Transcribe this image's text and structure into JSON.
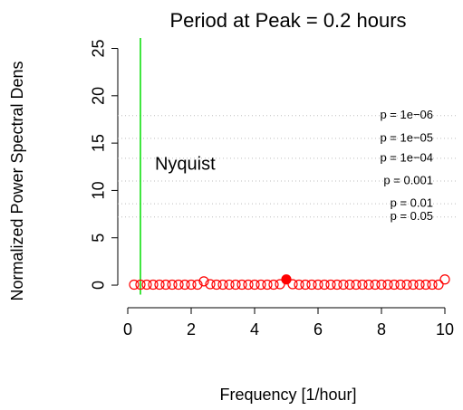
{
  "chart_data": {
    "type": "scatter",
    "title": "Period at Peak = 0.2 hours",
    "x_label": "Frequency [1/hour]",
    "y_label": "Normalized Power Spectral Dens",
    "xlim": [
      -0.314,
      10.4
    ],
    "ylim": [
      -1,
      26.1
    ],
    "xticks": [
      0,
      2,
      4,
      6,
      8,
      10
    ],
    "yticks": [
      0,
      5,
      10,
      15,
      20,
      25
    ],
    "series": [
      {
        "color": "#ff0000",
        "filled": false,
        "x": [
          0.2,
          0.4,
          0.6,
          0.8,
          1.0,
          1.2,
          1.4,
          1.6,
          1.8,
          2.0,
          2.2,
          2.4,
          2.6,
          2.8,
          3.0,
          3.2,
          3.4,
          3.6,
          3.8,
          4.0,
          4.2,
          4.4,
          4.6,
          4.8,
          5.2,
          5.4,
          5.6,
          5.8,
          6.0,
          6.2,
          6.4,
          6.6,
          6.8,
          7.0,
          7.2,
          7.4,
          7.6,
          7.8,
          8.0,
          8.2,
          8.4,
          8.6,
          8.8,
          9.0,
          9.2,
          9.4,
          9.6,
          9.8,
          10.0
        ],
        "values": [
          0.05,
          0.05,
          0.05,
          0.05,
          0.05,
          0.05,
          0.05,
          0.05,
          0.05,
          0.05,
          0.05,
          0.4,
          0.1,
          0.05,
          0.05,
          0.05,
          0.05,
          0.05,
          0.05,
          0.05,
          0.05,
          0.05,
          0.05,
          0.1,
          0.1,
          0.05,
          0.05,
          0.05,
          0.05,
          0.05,
          0.05,
          0.05,
          0.05,
          0.05,
          0.05,
          0.05,
          0.05,
          0.05,
          0.05,
          0.05,
          0.05,
          0.05,
          0.05,
          0.05,
          0.05,
          0.05,
          0.05,
          0.05,
          0.6
        ]
      },
      {
        "color": "#ff0000",
        "filled": true,
        "x": [
          5.0
        ],
        "values": [
          0.6
        ]
      }
    ],
    "hlines": [
      {
        "value": 17.9,
        "label": "p = 1e−06"
      },
      {
        "value": 15.5,
        "label": "p = 1e−05"
      },
      {
        "value": 13.4,
        "label": "p = 1e−04"
      },
      {
        "value": 11.0,
        "label": "p = 0.001"
      },
      {
        "value": 8.6,
        "label": "p = 0.01"
      },
      {
        "value": 7.2,
        "label": "p = 0.05"
      }
    ],
    "hline_color": "#bebebe",
    "vline": {
      "value": 0.4,
      "label": "Nyquist",
      "color": "#00dd00"
    }
  }
}
